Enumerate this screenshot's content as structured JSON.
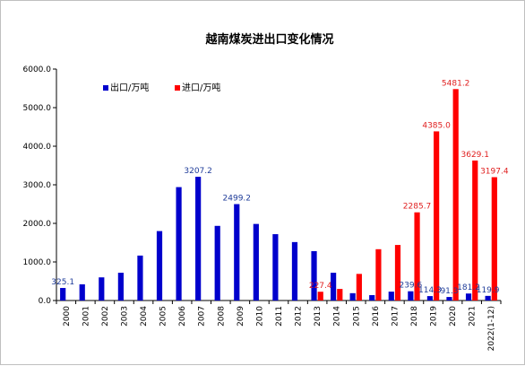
{
  "chart_data": {
    "type": "bar",
    "title": "越南煤炭进出口变化情况",
    "xlabel": "",
    "ylabel": "",
    "ylim": [
      0,
      6000
    ],
    "yticks": [
      "0.0",
      "1000.0",
      "2000.0",
      "3000.0",
      "4000.0",
      "5000.0",
      "6000.0"
    ],
    "grid": false,
    "legend_position": "top-left",
    "categories": [
      "2000",
      "2001",
      "2002",
      "2003",
      "2004",
      "2005",
      "2006",
      "2007",
      "2008",
      "2009",
      "2010",
      "2011",
      "2012",
      "2013",
      "2014",
      "2015",
      "2016",
      "2017",
      "2018",
      "2019",
      "2020",
      "2021",
      "2022(1-12)"
    ],
    "series": [
      {
        "name": "出口/万吨",
        "color": "#0000cc",
        "values": [
          325.1,
          420,
          600,
          720,
          1165,
          1800,
          2940,
          3207.2,
          1935,
          2499.2,
          1985,
          1720,
          1515,
          1280,
          720,
          190,
          140,
          230,
          239.6,
          114.3,
          91.3,
          181.2,
          119.9
        ],
        "labels": {
          "0": "325.1",
          "7": "3207.2",
          "9": "2499.2",
          "18": "239.6",
          "19": "114.3",
          "20": "91.3",
          "21": "181.2",
          "22": "119.9"
        }
      },
      {
        "name": "进口/万吨",
        "color": "#ff0000",
        "values": [
          null,
          null,
          null,
          null,
          null,
          null,
          null,
          null,
          null,
          null,
          null,
          null,
          null,
          227.4,
          300,
          690,
          1330,
          1440,
          2285.7,
          4385.0,
          5481.2,
          3629.1,
          3197.4
        ],
        "labels": {
          "13": "227.4",
          "18": "2285.7",
          "19": "4385.0",
          "20": "5481.2",
          "21": "3629.1",
          "22": "3197.4"
        }
      }
    ]
  }
}
